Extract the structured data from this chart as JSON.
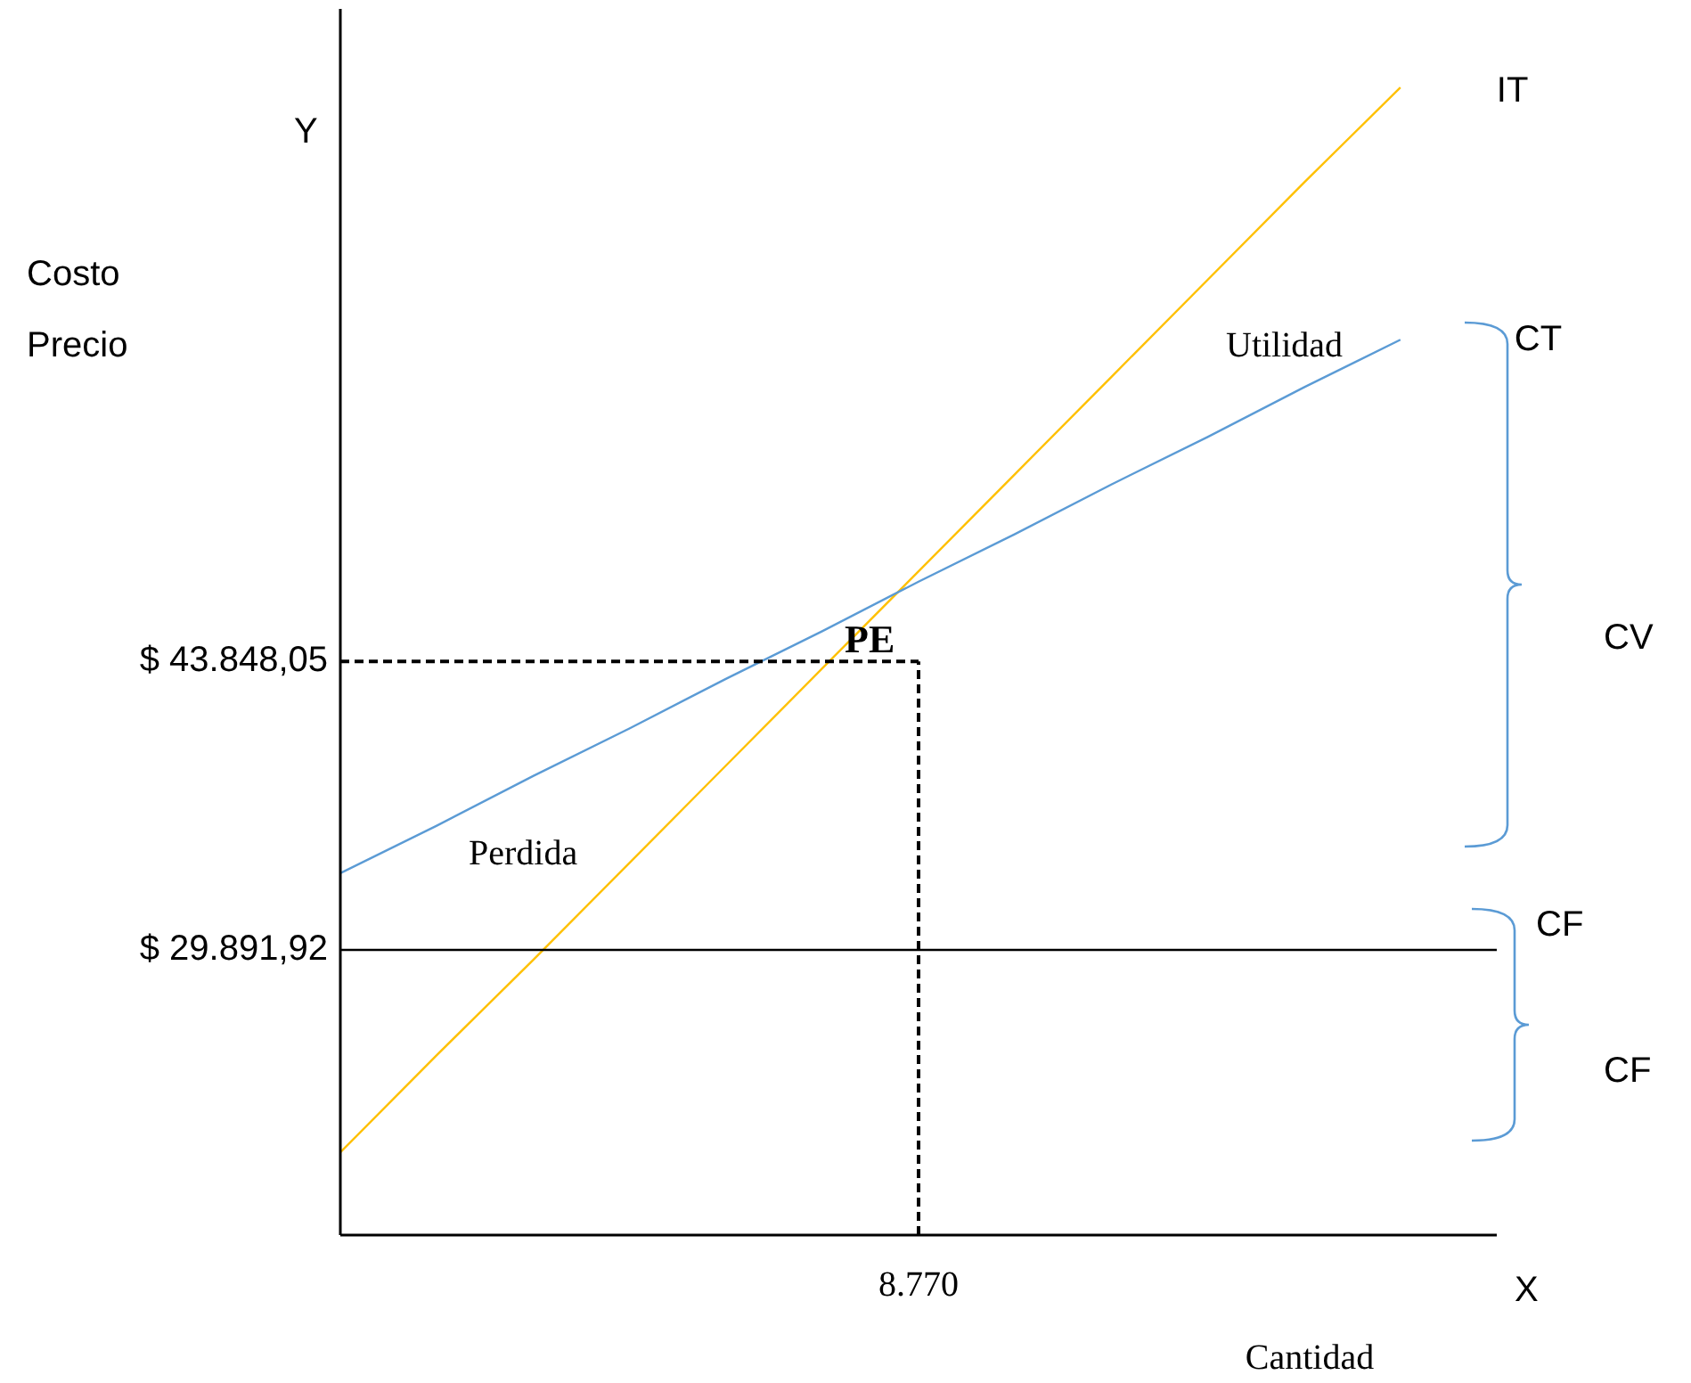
{
  "chart_data": {
    "type": "line",
    "xlabel": "Cantidad",
    "ylabel": "Costo\nPrecio",
    "categories": [
      null,
      null,
      null,
      null,
      null,
      null,
      "8.770",
      null,
      null,
      null,
      null,
      null,
      null
    ],
    "ylim": [
      16100,
      75400
    ],
    "yticks": [
      {
        "value": 29891.92,
        "label": "$ 29.891,92"
      },
      {
        "value": 43848.05,
        "label": "$ 43.848,05"
      }
    ],
    "grid": false,
    "marker": "none",
    "series": [
      {
        "name": "IT",
        "color": "#ffc000",
        "values": [
          20100,
          24800,
          29400,
          34100,
          38800,
          43500,
          48200,
          52900,
          57600,
          62300,
          67000,
          71600,
          null
        ]
      },
      {
        "name": "CT",
        "color": "#5b9bd5",
        "values": [
          33600,
          35900,
          38300,
          40600,
          43000,
          45300,
          47700,
          50000,
          52400,
          54700,
          57100,
          59400,
          null
        ]
      },
      {
        "name": "CF",
        "color": "#000000",
        "values": [
          29891.92,
          29891.92,
          29891.92,
          29891.92,
          29891.92,
          29891.92,
          29891.92,
          29891.92,
          29891.92,
          29891.92,
          29891.92,
          29891.92,
          29891.92
        ]
      },
      {
        "color": "#000000",
        "line_style": "dashed",
        "values": [
          43848.05,
          43848.05,
          43848.05,
          43848.05,
          43848.05,
          43848.05,
          43848.05,
          null,
          null,
          null,
          null,
          null,
          null
        ]
      }
    ],
    "ref_lines": [
      {
        "axis": "x",
        "value": "8.770",
        "line_style": "dashed",
        "color": "#000000"
      }
    ],
    "annotations": [
      "Y",
      "X",
      "PE",
      "Utilidad",
      "Perdida",
      "CV",
      "CF"
    ]
  }
}
